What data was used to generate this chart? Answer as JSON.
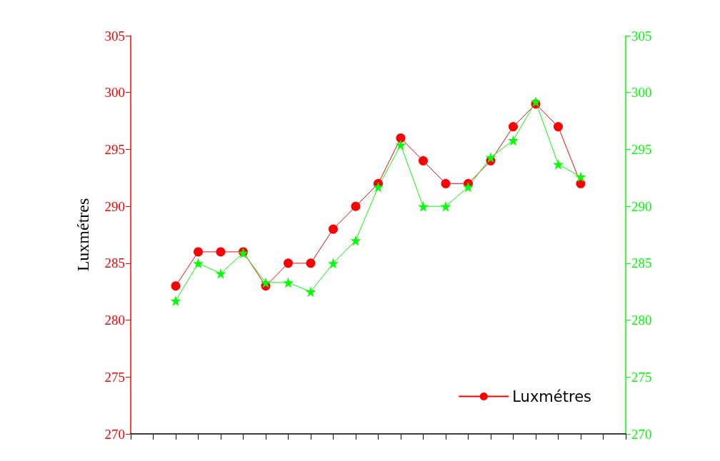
{
  "chart_data": {
    "type": "line",
    "ylabel": "Luxmétres",
    "categories": [
      null,
      null,
      null,
      null,
      null,
      null,
      null,
      null,
      null,
      null,
      null,
      null,
      null,
      null,
      null,
      null,
      null,
      null,
      null,
      null,
      null,
      null,
      null
    ],
    "series": [
      {
        "name": "Luxmétres",
        "color": "#ff0000",
        "marker": "circle",
        "values": [
          null,
          null,
          283,
          286,
          286,
          286,
          283,
          285,
          285,
          288,
          290,
          292,
          296,
          294,
          292,
          292,
          294,
          297,
          299,
          297,
          292,
          null,
          null
        ]
      },
      {
        "color": "#00ff00",
        "marker": "star",
        "axis": "y2",
        "values": [
          null,
          null,
          281.7,
          285,
          284.1,
          285.9,
          283.3,
          283.3,
          282.5,
          285,
          287,
          291.7,
          295.4,
          290,
          290,
          291.7,
          294.3,
          295.8,
          299.2,
          293.7,
          292.6,
          null,
          null
        ]
      }
    ],
    "ylim": [
      270,
      305
    ],
    "yticks": [
      270,
      275,
      280,
      285,
      290,
      295,
      300,
      305
    ],
    "y2lim": [
      270,
      305
    ],
    "y2ticks": [
      270,
      275,
      280,
      285,
      290,
      295,
      300,
      305
    ],
    "tick_labels": "y",
    "grid": false,
    "legend": "bottom right",
    "line_style": "solid"
  }
}
